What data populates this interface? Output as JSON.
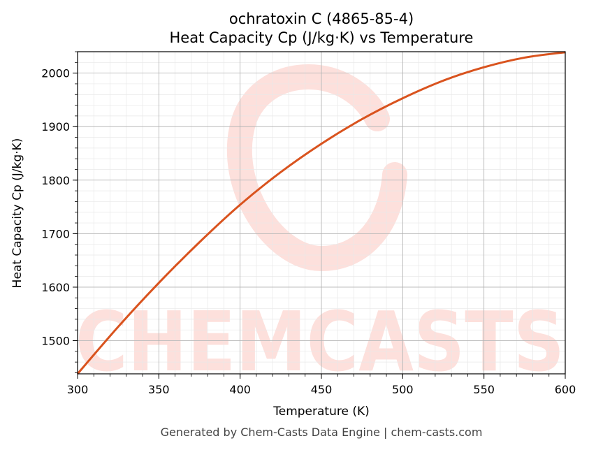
{
  "chart_data": {
    "type": "line",
    "title": "ochratoxin C (4865-85-4)",
    "subtitle": "Heat Capacity Cp (J/kg·K) vs Temperature",
    "xlabel": "Temperature (K)",
    "ylabel": "Heat Capacity Cp (J/kg·K)",
    "xlim": [
      300,
      600
    ],
    "ylim": [
      1438,
      2040
    ],
    "x_ticks": [
      300,
      350,
      400,
      450,
      500,
      550,
      600
    ],
    "y_ticks": [
      1500,
      1600,
      1700,
      1800,
      1900,
      2000
    ],
    "grid": true,
    "line_color": "#d9531e",
    "series": [
      {
        "x": [
          300,
          325,
          350,
          375,
          400,
          425,
          450,
          475,
          500,
          525,
          550,
          575,
          600
        ],
        "values": [
          1438,
          1526,
          1608,
          1684,
          1754,
          1815,
          1868,
          1914,
          1953,
          1986,
          2011,
          2029,
          2039
        ]
      }
    ]
  },
  "watermark": {
    "text": "CHEMCASTS",
    "color": "#fde0dc"
  },
  "footer": "Generated by Chem-Casts Data Engine | chem-casts.com"
}
